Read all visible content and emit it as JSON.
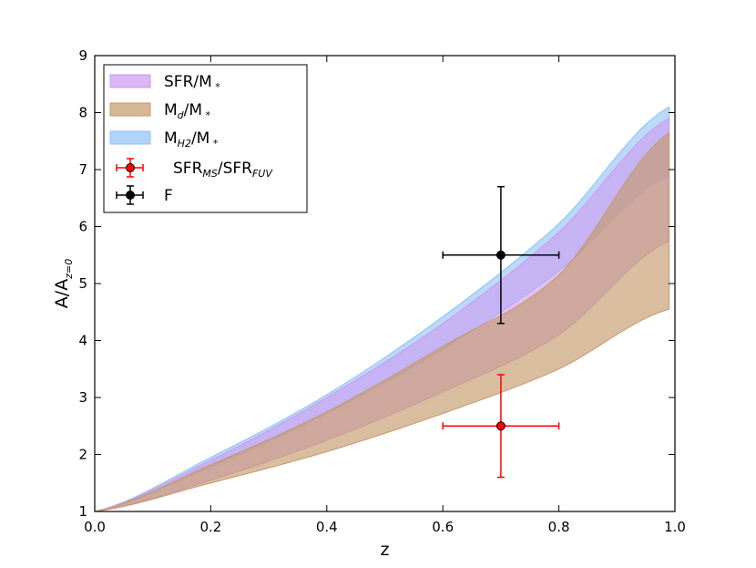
{
  "chart_data": {
    "type": "area",
    "xlabel": "z",
    "ylabel": {
      "main": "A/A",
      "sub": "z=0"
    },
    "xlim": [
      0.0,
      1.0
    ],
    "ylim": [
      1,
      9
    ],
    "xticks": [
      "0.0",
      "0.2",
      "0.4",
      "0.6",
      "0.8",
      "1.0"
    ],
    "yticks": [
      "1",
      "2",
      "3",
      "4",
      "5",
      "6",
      "7",
      "8",
      "9"
    ],
    "legend_position": "top-left",
    "grid": false,
    "bands": [
      {
        "name": "M_H2/M_*",
        "color": "#8ec0f5",
        "opacity": 0.6,
        "x": [
          0.0,
          0.2,
          0.4,
          0.6,
          0.8,
          0.99
        ],
        "lower": [
          1.0,
          1.78,
          2.72,
          3.85,
          5.22,
          6.9
        ],
        "upper": [
          1.0,
          1.95,
          3.05,
          4.42,
          6.05,
          8.1
        ]
      },
      {
        "name": "SFR/M_*",
        "color": "#cc99ee",
        "opacity": 0.6,
        "x": [
          0.0,
          0.2,
          0.4,
          0.6,
          0.8,
          0.99
        ],
        "lower": [
          1.0,
          1.55,
          2.25,
          3.1,
          4.1,
          5.75
        ],
        "upper": [
          1.0,
          1.9,
          3.0,
          4.3,
          5.9,
          7.9
        ]
      },
      {
        "name": "M_d/M_*",
        "color": "#c49a6c",
        "opacity": 0.65,
        "x": [
          0.0,
          0.2,
          0.4,
          0.6,
          0.8,
          0.99
        ],
        "lower": [
          1.0,
          1.5,
          2.05,
          2.72,
          3.5,
          4.55
        ],
        "upper": [
          1.0,
          1.82,
          2.75,
          3.9,
          5.15,
          7.65
        ]
      }
    ],
    "points": [
      {
        "name": "SFR_MS/SFR_FUV",
        "color": "#ff0000",
        "x": 0.7,
        "y": 2.5,
        "xerr": 0.1,
        "yerr": 0.9
      },
      {
        "name": "F",
        "color": "#000000",
        "x": 0.7,
        "y": 5.5,
        "xerr": 0.1,
        "yerr": 1.2
      }
    ],
    "legend": [
      {
        "kind": "band",
        "color": "#cc99ee",
        "text": "SFR/M",
        "sub": "",
        "tail": "*"
      },
      {
        "kind": "band",
        "color": "#c49a6c",
        "text": "M",
        "sub": "d",
        "mid": "/M",
        "tail": "*"
      },
      {
        "kind": "band",
        "color": "#8ec0f5",
        "text": "M",
        "sub": "H2",
        "mid": "/M",
        "tail": "*"
      },
      {
        "kind": "point",
        "color": "#ff0000",
        "text": "SFR",
        "sub": "MS",
        "mid": "/SFR",
        "sub2": "FUV"
      },
      {
        "kind": "point",
        "color": "#000000",
        "text": "F"
      }
    ]
  }
}
